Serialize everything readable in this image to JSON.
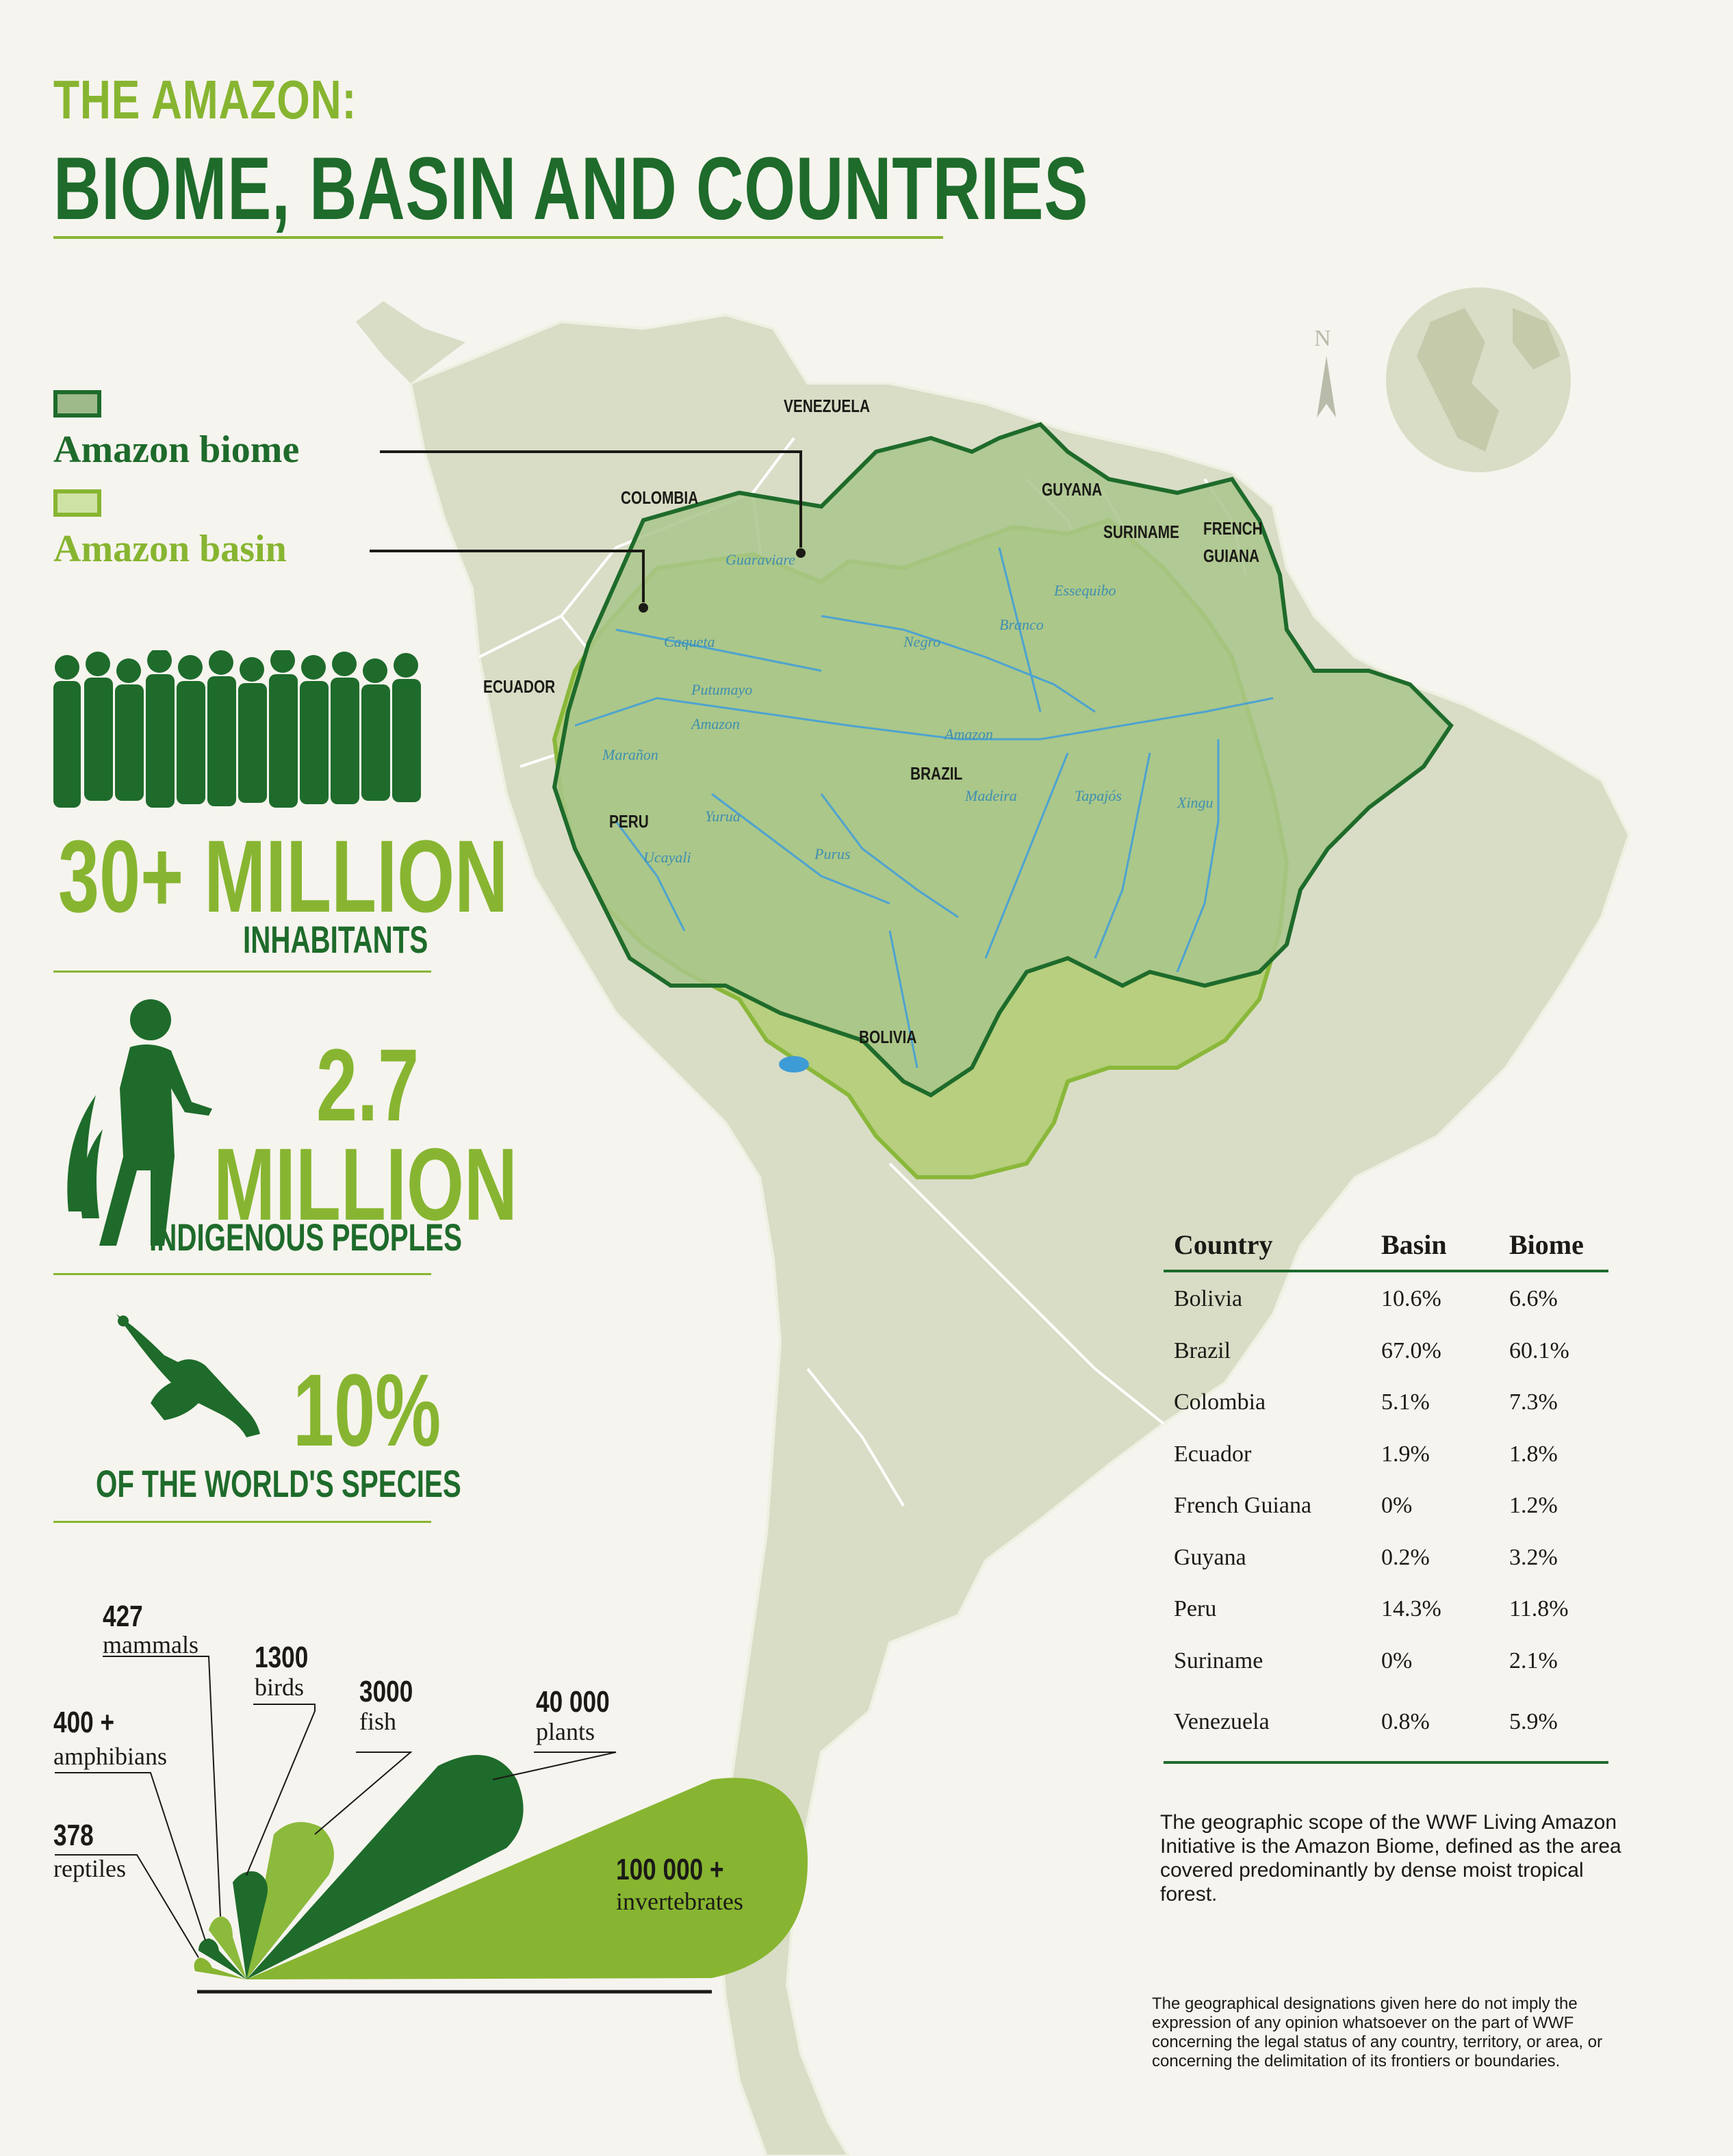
{
  "title": {
    "line1": "THE AMAZON:",
    "line2": "BIOME, BASIN AND COUNTRIES"
  },
  "legend": {
    "biome_label": "Amazon biome",
    "basin_label": "Amazon basin",
    "biome_color": "#9fba8a",
    "basin_color": "#cfe2a5"
  },
  "stats": {
    "inhabitants_value": "30+ MILLION",
    "inhabitants_label": "INHABITANTS",
    "indigenous_value1": "2.7",
    "indigenous_value2": "MILLION",
    "indigenous_label": "INDIGENOUS PEOPLES",
    "species_value": "10%",
    "species_label": "OF THE WORLD'S SPECIES"
  },
  "species": [
    {
      "count": "427",
      "name": "mammals"
    },
    {
      "count": "1300",
      "name": "birds"
    },
    {
      "count": "3000",
      "name": "fish"
    },
    {
      "count": "40 000",
      "name": "plants"
    },
    {
      "count": "400 +",
      "name": "amphibians"
    },
    {
      "count": "378",
      "name": "reptiles"
    },
    {
      "count": "100 000 +",
      "name": "invertebrates"
    }
  ],
  "map": {
    "countries": [
      "VENEZUELA",
      "COLOMBIA",
      "GUYANA",
      "SURINAME",
      "FRENCH",
      "GUIANA",
      "ECUADOR",
      "PERU",
      "BRAZIL",
      "BOLIVIA"
    ],
    "rivers": [
      "Guaraviare",
      "Caqueta",
      "Putumayo",
      "Amazon",
      "Marañon",
      "Negro",
      "Branco",
      "Essequibo",
      "Amazon",
      "Yurua",
      "Purus",
      "Madeira",
      "Tapajós",
      "Xingu",
      "Ucayali"
    ],
    "compass": "N"
  },
  "table": {
    "headers": [
      "Country",
      "Basin",
      "Biome"
    ],
    "rows": [
      [
        "Bolivia",
        "10.6%",
        "6.6%"
      ],
      [
        "Brazil",
        "67.0%",
        "60.1%"
      ],
      [
        "Colombia",
        "5.1%",
        "7.3%"
      ],
      [
        "Ecuador",
        "1.9%",
        "1.8%"
      ],
      [
        "French Guiana",
        "0%",
        "1.2%"
      ],
      [
        "Guyana",
        "0.2%",
        "3.2%"
      ],
      [
        "Peru",
        "14.3%",
        "11.8%"
      ],
      [
        "Suriname",
        "0%",
        "2.1%"
      ],
      [
        "Venezuela",
        "0.8%",
        "5.9%"
      ]
    ]
  },
  "notes": {
    "scope": "The geographic scope of the WWF Living Amazon Initiative is the Amazon Biome, defined as the area covered predominantly by dense moist tropical forest.",
    "disclaimer": "The geographical designations given here do not imply the expression of any opinion whatsoever on the part of WWF concerning the legal status of any country, territory, or area, or concerning the delimitation of its frontiers or boundaries."
  }
}
